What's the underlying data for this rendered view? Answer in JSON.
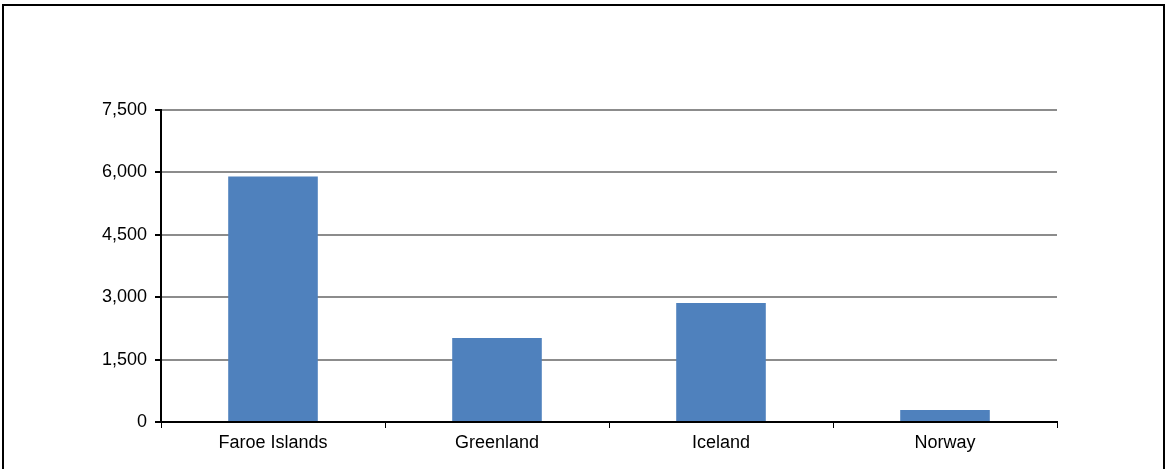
{
  "chart_data": {
    "type": "bar",
    "categories": [
      "Faroe Islands",
      "Greenland",
      "Iceland",
      "Norway"
    ],
    "values": [
      5900,
      2020,
      2860,
      290
    ],
    "color": "#4f81bd",
    "ylim": [
      0,
      7500
    ],
    "yticks": [
      {
        "value": 0,
        "label": "0"
      },
      {
        "value": 1500,
        "label": "1,500"
      },
      {
        "value": 3000,
        "label": "3,000"
      },
      {
        "value": 4500,
        "label": "4,500"
      },
      {
        "value": 6000,
        "label": "6,000"
      },
      {
        "value": 7500,
        "label": "7,500"
      }
    ],
    "grid": "y",
    "legend": false
  }
}
